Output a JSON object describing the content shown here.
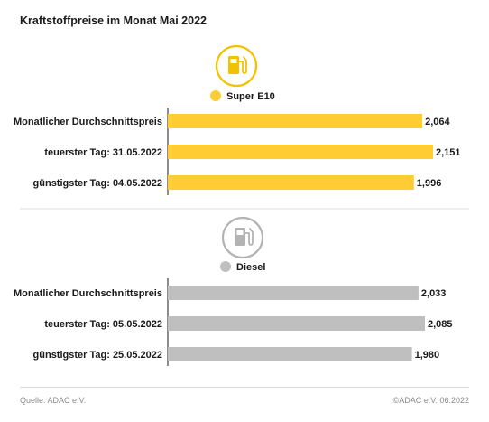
{
  "title": "Kraftstoffpreise im Monat Mai 2022",
  "source": "Quelle: ADAC e.V.",
  "copyright": "©ADAC e.V. 06.2022",
  "colors": {
    "super": "#ffcc33",
    "diesel": "#bfbfbf",
    "axis": "#1a1a1a",
    "icon_super": "#f2c200",
    "icon_diesel": "#b3b3b3"
  },
  "chart_data": [
    {
      "type": "bar",
      "orientation": "horizontal",
      "series_name": "Super E10",
      "icon": "fuel-pump-icon",
      "categories": [
        "Monatlicher Durchschnittspreis",
        "teuerster Tag: 31.05.2022",
        "günstigster Tag: 04.05.2022"
      ],
      "values": [
        2.064,
        2.151,
        1.996
      ],
      "value_labels": [
        "2,064",
        "2,151",
        "1,996"
      ],
      "xlim": [
        0,
        2.151
      ],
      "grid": false,
      "legend": "top-center"
    },
    {
      "type": "bar",
      "orientation": "horizontal",
      "series_name": "Diesel",
      "icon": "fuel-pump-icon",
      "categories": [
        "Monatlicher Durchschnittspreis",
        "teuerster Tag: 05.05.2022",
        "günstigster Tag: 25.05.2022"
      ],
      "values": [
        2.033,
        2.085,
        1.98
      ],
      "value_labels": [
        "2,033",
        "2,085",
        "1,980"
      ],
      "xlim": [
        0,
        2.151
      ],
      "grid": false,
      "legend": "top-center"
    }
  ]
}
